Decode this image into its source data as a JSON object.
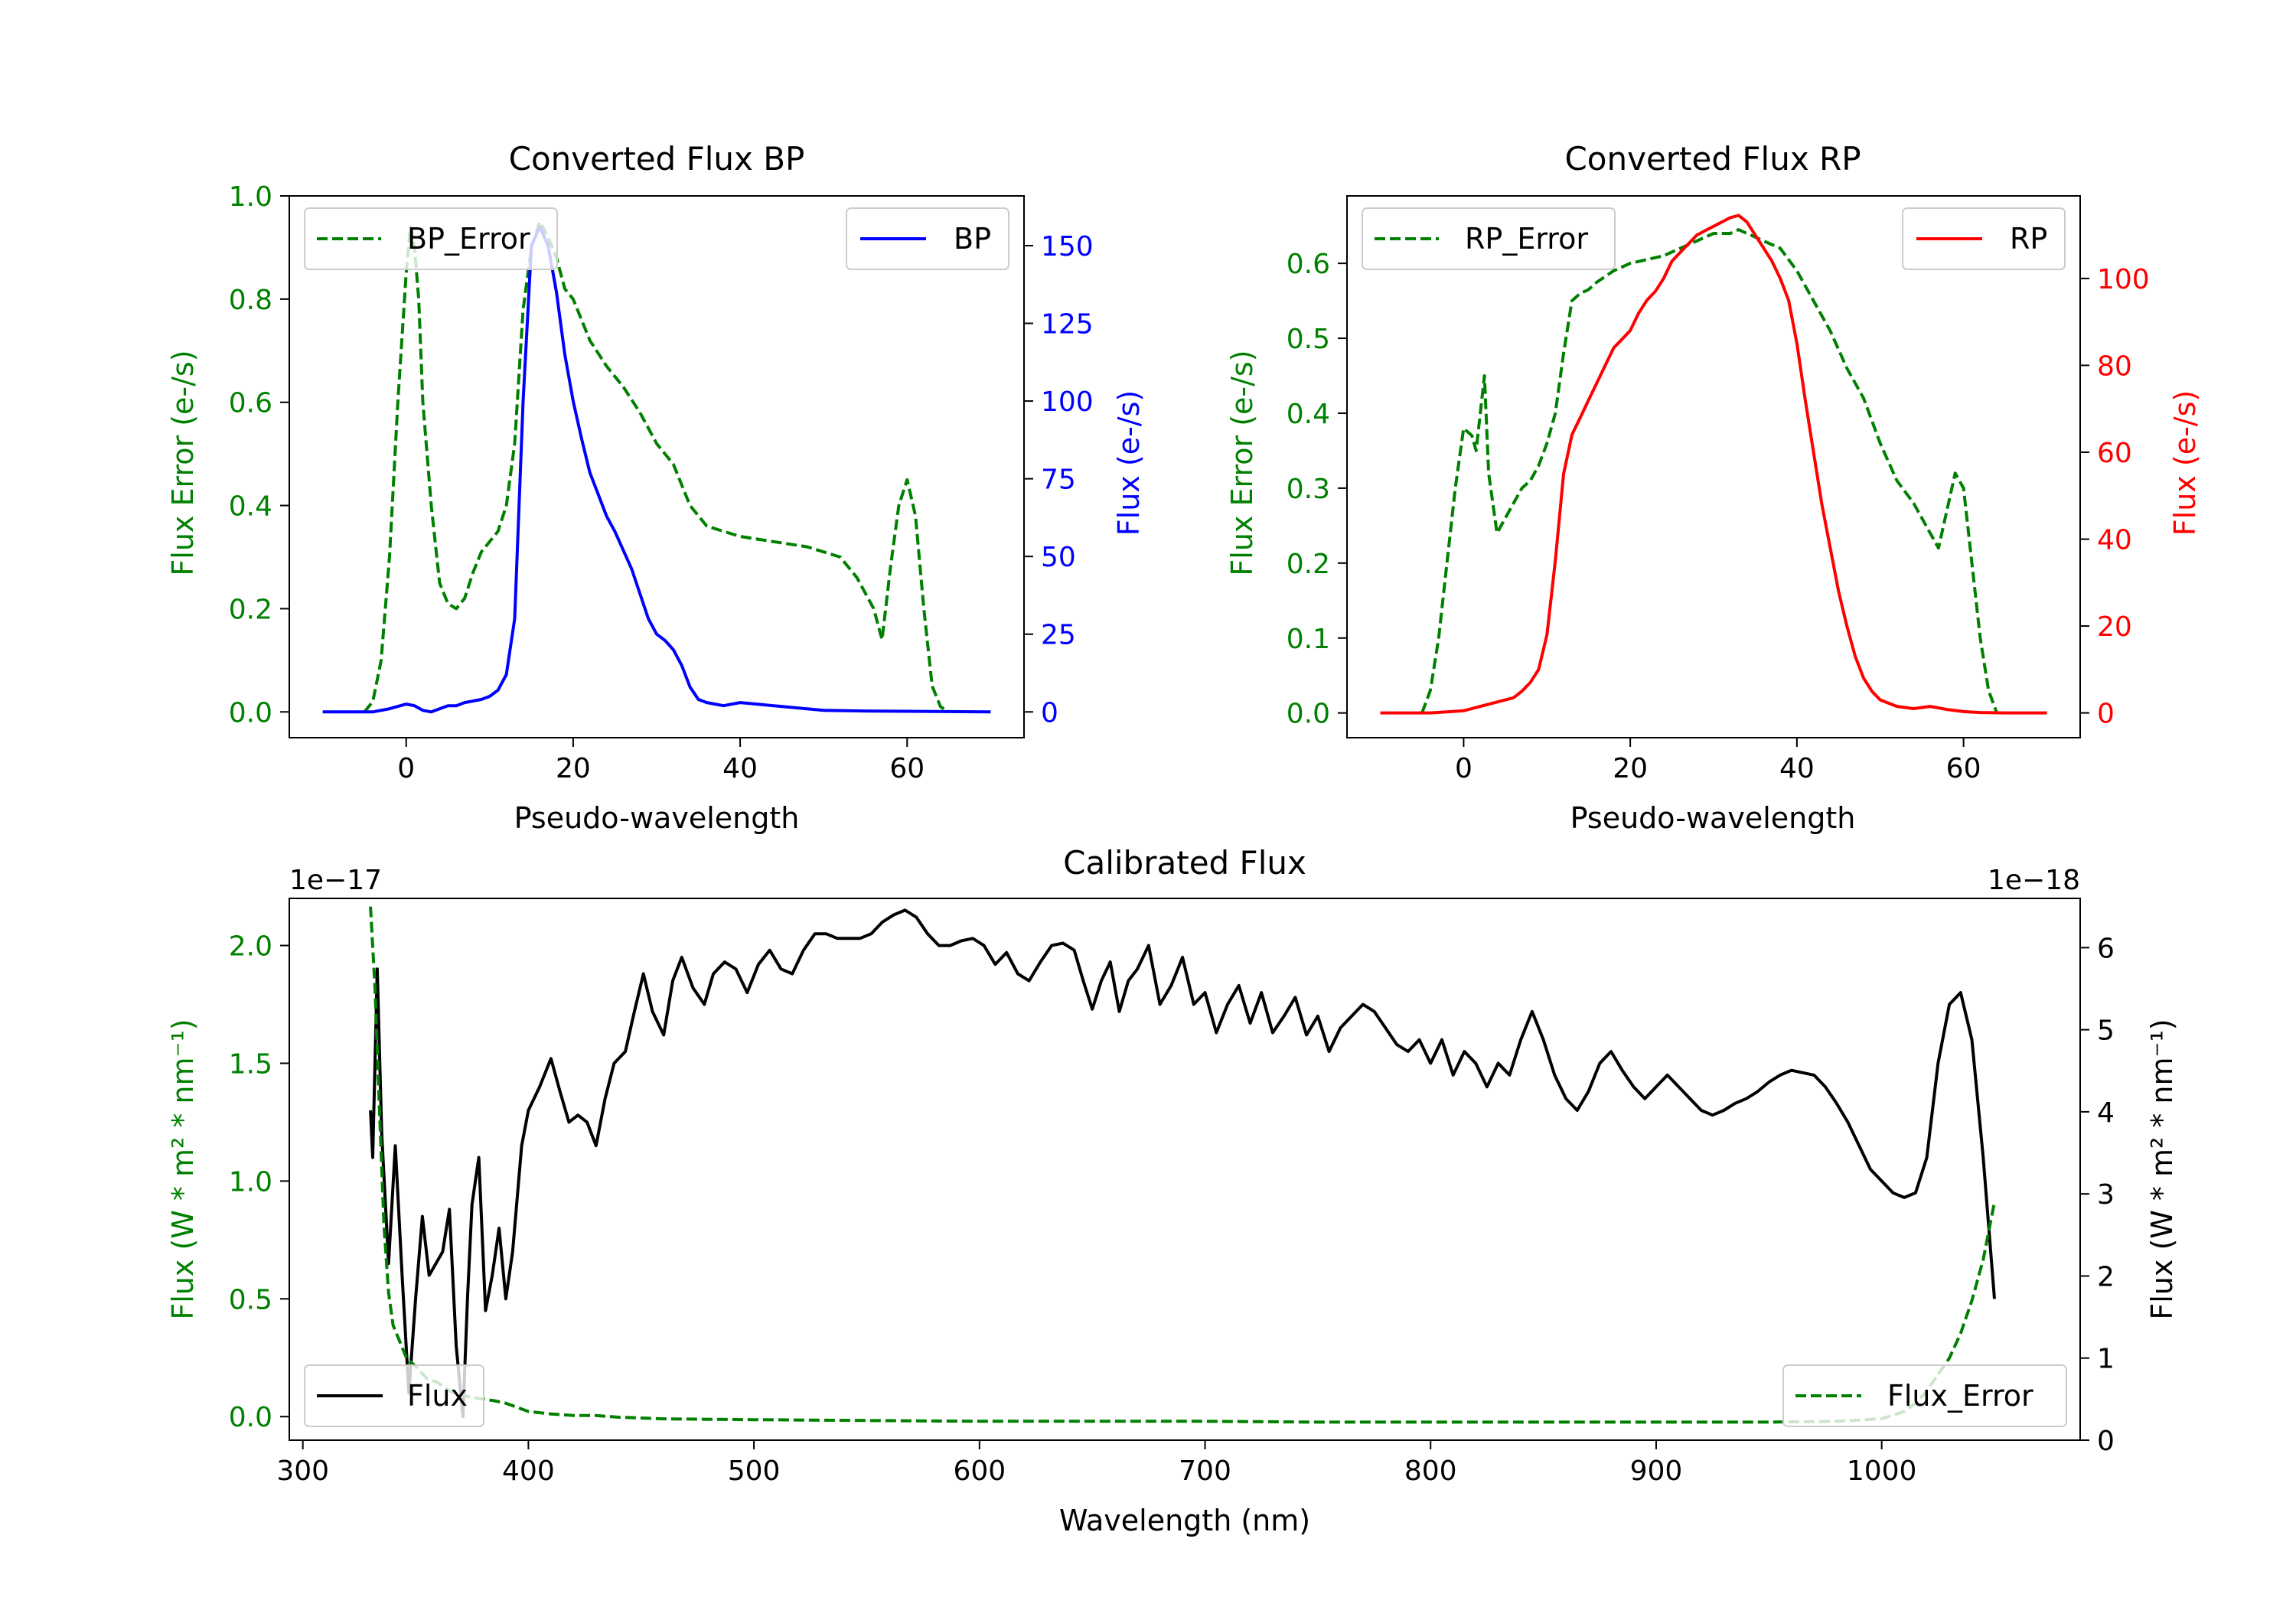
{
  "colors": {
    "green": "#008000",
    "blue": "#0000ff",
    "red": "#ff0000",
    "black": "#000000"
  },
  "chart_data": [
    {
      "id": "bp",
      "type": "line",
      "title": "Converted Flux BP",
      "xlabel": "Pseudo-wavelength",
      "ylabel_left": "Flux Error (e-/s)",
      "ylabel_right": "Flux (e-/s)",
      "xlim": [
        -14,
        74
      ],
      "ylim_left": [
        -0.05,
        1.0
      ],
      "ylim_right": [
        -8.3,
        166
      ],
      "xticks": [
        0,
        20,
        40,
        60
      ],
      "xtick_labels": [
        "0",
        "20",
        "40",
        "60"
      ],
      "yticks_left": [
        0.0,
        0.2,
        0.4,
        0.6,
        0.8,
        1.0
      ],
      "ytick_labels_left": [
        "0.0",
        "0.2",
        "0.4",
        "0.6",
        "0.8",
        "1.0"
      ],
      "yticks_right": [
        0,
        25,
        50,
        75,
        100,
        125,
        150
      ],
      "ytick_labels_right": [
        "0",
        "25",
        "50",
        "75",
        "100",
        "125",
        "150"
      ],
      "legend_left": {
        "label": "BP_Error",
        "placement": "upper left"
      },
      "legend_right": {
        "label": "BP",
        "placement": "upper right"
      },
      "series": [
        {
          "name": "BP_Error",
          "axis": "left",
          "style": "dashed",
          "color": "#008000",
          "x": [
            -5,
            -4,
            -3,
            -2,
            -1,
            0,
            0.5,
            1,
            1.5,
            2,
            3,
            4,
            5,
            6,
            7,
            8,
            9,
            10,
            11,
            12,
            13,
            14,
            15,
            16,
            17,
            18,
            19,
            20,
            21,
            22,
            24,
            26,
            28,
            30,
            32,
            34,
            36,
            38,
            40,
            44,
            48,
            52,
            54,
            56,
            57,
            58,
            59,
            60,
            61,
            62,
            63,
            64,
            65
          ],
          "y": [
            0.0,
            0.02,
            0.1,
            0.3,
            0.6,
            0.85,
            0.94,
            0.9,
            0.8,
            0.6,
            0.4,
            0.25,
            0.21,
            0.2,
            0.22,
            0.27,
            0.31,
            0.33,
            0.35,
            0.4,
            0.52,
            0.78,
            0.9,
            0.95,
            0.92,
            0.88,
            0.82,
            0.8,
            0.76,
            0.72,
            0.67,
            0.63,
            0.58,
            0.52,
            0.48,
            0.4,
            0.36,
            0.35,
            0.34,
            0.33,
            0.32,
            0.3,
            0.26,
            0.2,
            0.14,
            0.28,
            0.4,
            0.45,
            0.38,
            0.2,
            0.05,
            0.01,
            0.0
          ]
        },
        {
          "name": "BP",
          "axis": "right",
          "style": "solid",
          "color": "#0000ff",
          "x": [
            -10,
            -4,
            -2,
            0,
            1,
            2,
            3,
            4,
            5,
            6,
            7,
            8,
            9,
            10,
            11,
            12,
            13,
            14,
            15,
            16,
            17,
            18,
            19,
            20,
            21,
            22,
            23,
            24,
            25,
            26,
            27,
            28,
            29,
            30,
            31,
            32,
            33,
            34,
            35,
            36,
            37,
            38,
            40,
            42,
            44,
            46,
            48,
            50,
            55,
            60,
            65,
            70
          ],
          "y": [
            0,
            0,
            1,
            2.5,
            2,
            0.5,
            0,
            1,
            2,
            2,
            3,
            3.5,
            4,
            5,
            7,
            12,
            30,
            100,
            150,
            156,
            150,
            135,
            115,
            100,
            88,
            77,
            70,
            63,
            58,
            52,
            46,
            38,
            30,
            25,
            23,
            20,
            15,
            8,
            4,
            3,
            2.5,
            2,
            3,
            2.5,
            2,
            1.5,
            1,
            0.5,
            0.3,
            0.2,
            0.1,
            0
          ]
        }
      ]
    },
    {
      "id": "rp",
      "type": "line",
      "title": "Converted Flux RP",
      "xlabel": "Pseudo-wavelength",
      "ylabel_left": "Flux Error (e-/s)",
      "ylabel_right": "Flux (e-/s)",
      "xlim": [
        -14,
        74
      ],
      "ylim_left": [
        -0.033,
        0.69
      ],
      "ylim_right": [
        -5.7,
        119
      ],
      "xticks": [
        0,
        20,
        40,
        60
      ],
      "xtick_labels": [
        "0",
        "20",
        "40",
        "60"
      ],
      "yticks_left": [
        0.0,
        0.1,
        0.2,
        0.3,
        0.4,
        0.5,
        0.6
      ],
      "ytick_labels_left": [
        "0.0",
        "0.1",
        "0.2",
        "0.3",
        "0.4",
        "0.5",
        "0.6"
      ],
      "yticks_right": [
        0,
        20,
        40,
        60,
        80,
        100
      ],
      "ytick_labels_right": [
        "0",
        "20",
        "40",
        "60",
        "80",
        "100"
      ],
      "legend_left": {
        "label": "RP_Error",
        "placement": "upper left"
      },
      "legend_right": {
        "label": "RP",
        "placement": "upper right"
      },
      "series": [
        {
          "name": "RP_Error",
          "axis": "left",
          "style": "dashed",
          "color": "#008000",
          "x": [
            -5,
            -4,
            -3,
            -2,
            -1,
            0,
            1,
            1.5,
            2,
            2.5,
            3,
            4,
            5,
            6,
            7,
            8,
            9,
            10,
            11,
            12,
            13,
            14,
            15,
            16,
            18,
            20,
            22,
            24,
            26,
            28,
            30,
            32,
            33,
            34,
            36,
            38,
            40,
            42,
            44,
            46,
            48,
            50,
            52,
            54,
            55,
            56,
            57,
            58,
            59,
            60,
            61,
            62,
            63,
            64
          ],
          "y": [
            0.0,
            0.03,
            0.1,
            0.2,
            0.3,
            0.38,
            0.37,
            0.35,
            0.4,
            0.45,
            0.32,
            0.24,
            0.26,
            0.28,
            0.3,
            0.31,
            0.33,
            0.36,
            0.4,
            0.48,
            0.55,
            0.56,
            0.565,
            0.575,
            0.59,
            0.6,
            0.605,
            0.61,
            0.62,
            0.63,
            0.64,
            0.64,
            0.645,
            0.64,
            0.63,
            0.62,
            0.59,
            0.55,
            0.51,
            0.46,
            0.42,
            0.36,
            0.31,
            0.28,
            0.26,
            0.24,
            0.22,
            0.27,
            0.32,
            0.3,
            0.2,
            0.1,
            0.03,
            0.0
          ]
        },
        {
          "name": "RP",
          "axis": "right",
          "style": "solid",
          "color": "#ff0000",
          "x": [
            -10,
            -4,
            0,
            2,
            4,
            6,
            7,
            8,
            9,
            10,
            11,
            12,
            13,
            14,
            15,
            16,
            17,
            18,
            19,
            20,
            21,
            22,
            23,
            24,
            25,
            26,
            27,
            28,
            29,
            30,
            31,
            32,
            33,
            34,
            35,
            36,
            37,
            38,
            39,
            40,
            41,
            42,
            43,
            44,
            45,
            46,
            47,
            48,
            49,
            50,
            52,
            54,
            56,
            58,
            60,
            62,
            65,
            70
          ],
          "y": [
            0,
            0,
            0.5,
            1.5,
            2.5,
            3.5,
            5,
            7,
            10,
            18,
            35,
            55,
            64,
            68,
            72,
            76,
            80,
            84,
            86,
            88,
            92,
            95,
            97,
            100,
            104,
            106,
            108,
            110,
            111,
            112,
            113,
            114,
            114.5,
            113,
            110,
            107,
            104,
            100,
            95,
            85,
            72,
            60,
            48,
            38,
            28,
            20,
            13,
            8,
            5,
            3,
            1.5,
            1,
            1.5,
            0.8,
            0.3,
            0.1,
            0,
            0
          ]
        }
      ]
    },
    {
      "id": "cal",
      "type": "line",
      "title": "Calibrated Flux",
      "xlabel": "Wavelength (nm)",
      "ylabel_left": "Flux (W * m² * nm⁻¹)",
      "ylabel_right": "Flux (W * m² * nm⁻¹)",
      "offset_left": "1e−17",
      "offset_right": "1e−18",
      "xlim": [
        294,
        1088
      ],
      "ylim_left": [
        -0.1,
        2.2
      ],
      "ylim_right": [
        0,
        6.6
      ],
      "xticks": [
        300,
        400,
        500,
        600,
        700,
        800,
        900,
        1000
      ],
      "xtick_labels": [
        "300",
        "400",
        "500",
        "600",
        "700",
        "800",
        "900",
        "1000"
      ],
      "yticks_left": [
        0.0,
        0.5,
        1.0,
        1.5,
        2.0
      ],
      "ytick_labels_left": [
        "0.0",
        "0.5",
        "1.0",
        "1.5",
        "2.0"
      ],
      "yticks_right": [
        0,
        1,
        2,
        3,
        4,
        5,
        6
      ],
      "ytick_labels_right": [
        "0",
        "1",
        "2",
        "3",
        "4",
        "5",
        "6"
      ],
      "legend_left": {
        "label": "Flux",
        "placement": "lower left"
      },
      "legend_right": {
        "label": "Flux_Error",
        "placement": "lower right"
      },
      "series": [
        {
          "name": "Flux",
          "axis": "left",
          "style": "solid",
          "color": "#000000",
          "x": [
            330,
            331,
            333,
            335,
            338,
            341,
            344,
            347,
            350,
            353,
            356,
            359,
            362,
            365,
            368,
            371,
            373,
            375,
            378,
            381,
            384,
            387,
            390,
            393,
            397,
            400,
            405,
            410,
            414,
            418,
            422,
            426,
            430,
            434,
            438,
            443,
            447,
            451,
            455,
            460,
            464,
            468,
            473,
            478,
            482,
            487,
            492,
            497,
            502,
            507,
            512,
            517,
            522,
            527,
            532,
            537,
            542,
            547,
            552,
            557,
            562,
            567,
            572,
            577,
            582,
            587,
            592,
            597,
            602,
            607,
            612,
            617,
            622,
            627,
            632,
            637,
            642,
            646,
            650,
            654,
            658,
            662,
            666,
            670,
            675,
            680,
            685,
            690,
            695,
            700,
            705,
            710,
            715,
            720,
            725,
            730,
            735,
            740,
            745,
            750,
            755,
            760,
            765,
            770,
            775,
            780,
            785,
            790,
            795,
            800,
            805,
            810,
            815,
            820,
            825,
            830,
            835,
            840,
            845,
            850,
            855,
            860,
            865,
            870,
            875,
            880,
            885,
            890,
            895,
            900,
            905,
            910,
            915,
            920,
            925,
            930,
            935,
            940,
            945,
            950,
            955,
            960,
            965,
            970,
            975,
            980,
            985,
            990,
            995,
            1000,
            1005,
            1010,
            1015,
            1020,
            1025,
            1030,
            1035,
            1040,
            1045,
            1050
          ],
          "y": [
            1.3,
            1.1,
            1.9,
            1.2,
            0.65,
            1.15,
            0.6,
            0.1,
            0.5,
            0.85,
            0.6,
            0.65,
            0.7,
            0.88,
            0.3,
            0.0,
            0.5,
            0.9,
            1.1,
            0.45,
            0.6,
            0.8,
            0.5,
            0.7,
            1.15,
            1.3,
            1.4,
            1.52,
            1.38,
            1.25,
            1.28,
            1.25,
            1.15,
            1.35,
            1.5,
            1.55,
            1.72,
            1.88,
            1.72,
            1.62,
            1.85,
            1.95,
            1.82,
            1.75,
            1.88,
            1.93,
            1.9,
            1.8,
            1.92,
            1.98,
            1.9,
            1.88,
            1.98,
            2.05,
            2.05,
            2.03,
            2.03,
            2.03,
            2.05,
            2.1,
            2.13,
            2.15,
            2.12,
            2.05,
            2.0,
            2.0,
            2.02,
            2.03,
            2.0,
            1.92,
            1.97,
            1.88,
            1.85,
            1.93,
            2.0,
            2.01,
            1.98,
            1.85,
            1.73,
            1.85,
            1.93,
            1.72,
            1.85,
            1.9,
            2.0,
            1.75,
            1.83,
            1.95,
            1.75,
            1.8,
            1.63,
            1.75,
            1.83,
            1.67,
            1.8,
            1.63,
            1.7,
            1.78,
            1.62,
            1.7,
            1.55,
            1.65,
            1.7,
            1.75,
            1.72,
            1.65,
            1.58,
            1.55,
            1.6,
            1.5,
            1.6,
            1.45,
            1.55,
            1.5,
            1.4,
            1.5,
            1.45,
            1.6,
            1.72,
            1.6,
            1.45,
            1.35,
            1.3,
            1.38,
            1.5,
            1.55,
            1.47,
            1.4,
            1.35,
            1.4,
            1.45,
            1.4,
            1.35,
            1.3,
            1.28,
            1.3,
            1.33,
            1.35,
            1.38,
            1.42,
            1.45,
            1.47,
            1.46,
            1.45,
            1.4,
            1.33,
            1.25,
            1.15,
            1.05,
            1.0,
            0.95,
            0.93,
            0.95,
            1.1,
            1.5,
            1.75,
            1.8,
            1.6,
            1.1,
            0.5
          ],
          "range": [
            330,
            1050
          ]
        },
        {
          "name": "Flux_Error",
          "axis": "right",
          "style": "dashed",
          "color": "#008000",
          "x": [
            330,
            332,
            334,
            336,
            338,
            340,
            343,
            346,
            350,
            355,
            360,
            365,
            370,
            375,
            380,
            385,
            390,
            395,
            400,
            410,
            420,
            430,
            440,
            460,
            500,
            550,
            600,
            650,
            700,
            750,
            800,
            850,
            900,
            950,
            980,
            1000,
            1010,
            1015,
            1020,
            1025,
            1030,
            1035,
            1040,
            1045,
            1050
          ],
          "y": [
            6.5,
            5.5,
            4.0,
            2.6,
            1.8,
            1.4,
            1.2,
            1.0,
            0.9,
            0.75,
            0.7,
            0.6,
            0.55,
            0.52,
            0.5,
            0.48,
            0.45,
            0.4,
            0.35,
            0.32,
            0.3,
            0.3,
            0.28,
            0.26,
            0.25,
            0.24,
            0.23,
            0.23,
            0.23,
            0.22,
            0.22,
            0.22,
            0.22,
            0.22,
            0.23,
            0.26,
            0.35,
            0.45,
            0.6,
            0.8,
            1.0,
            1.3,
            1.7,
            2.2,
            2.9
          ]
        }
      ]
    }
  ]
}
